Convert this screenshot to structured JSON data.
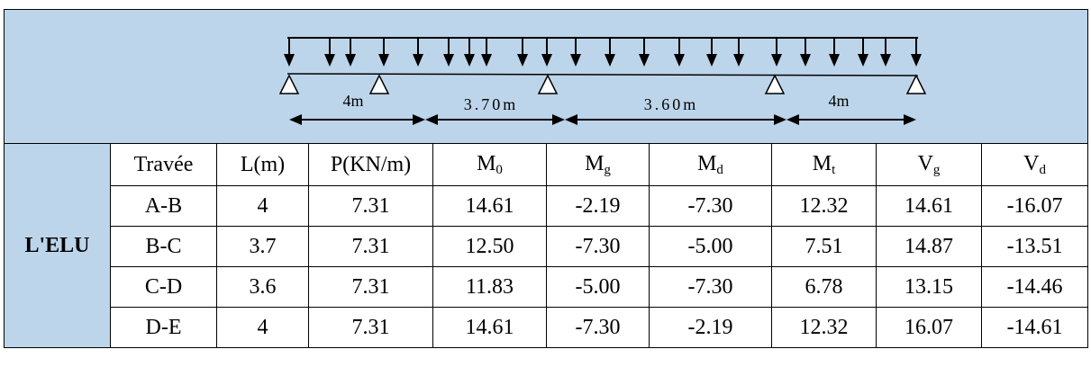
{
  "diagram": {
    "spans": [
      {
        "label": "4m"
      },
      {
        "label": "3.70m"
      },
      {
        "label": "3.60m"
      },
      {
        "label": "4m"
      }
    ]
  },
  "table": {
    "row_group_label": "L'ELU",
    "headers": [
      {
        "main": "Travée",
        "sub": ""
      },
      {
        "main": "L(m)",
        "sub": ""
      },
      {
        "main": "P(KN/m)",
        "sub": ""
      },
      {
        "main": "M",
        "sub": "0"
      },
      {
        "main": "M",
        "sub": "g"
      },
      {
        "main": "M",
        "sub": "d"
      },
      {
        "main": "M",
        "sub": "t"
      },
      {
        "main": "V",
        "sub": "g"
      },
      {
        "main": "V",
        "sub": "d"
      }
    ],
    "rows": [
      [
        "A-B",
        "4",
        "7.31",
        "14.61",
        "-2.19",
        "-7.30",
        "12.32",
        "14.61",
        "-16.07"
      ],
      [
        "B-C",
        "3.7",
        "7.31",
        "12.50",
        "-7.30",
        "-5.00",
        "7.51",
        "14.87",
        "-13.51"
      ],
      [
        "C-D",
        "3.6",
        "7.31",
        "11.83",
        "-5.00",
        "-7.30",
        "6.78",
        "13.15",
        "-14.46"
      ],
      [
        "D-E",
        "4",
        "7.31",
        "14.61",
        "-7.30",
        "-2.19",
        "12.32",
        "16.07",
        "-14.61"
      ]
    ]
  }
}
